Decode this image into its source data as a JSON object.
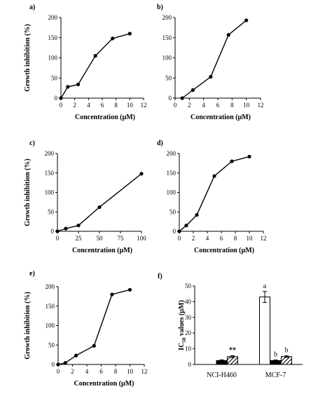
{
  "chart_data": [
    {
      "id": "a",
      "panel_label": "a)",
      "type": "line",
      "xlabel": "Concentration (µM)",
      "ylabel": "Growth inhibition (%)",
      "xlim": [
        0,
        12
      ],
      "ylim": [
        0,
        200
      ],
      "xticks": [
        0,
        2,
        4,
        6,
        8,
        10,
        12
      ],
      "yticks": [
        0,
        50,
        100,
        150,
        200
      ],
      "x": [
        0,
        1,
        2.5,
        5,
        7.5,
        10
      ],
      "y": [
        0,
        28,
        34,
        105,
        148,
        160
      ]
    },
    {
      "id": "b",
      "panel_label": "b)",
      "type": "line",
      "xlabel": "Concentration (µM)",
      "ylabel": "",
      "xlim": [
        0,
        12
      ],
      "ylim": [
        0,
        200
      ],
      "xticks": [
        0,
        2,
        4,
        6,
        8,
        10,
        12
      ],
      "yticks": [
        0,
        50,
        100,
        150,
        200
      ],
      "x": [
        1,
        2.5,
        5,
        7.5,
        10
      ],
      "y": [
        0,
        20,
        53,
        157,
        193
      ]
    },
    {
      "id": "c",
      "panel_label": "c)",
      "type": "line",
      "xlabel": "Concentration (µM)",
      "ylabel": "Growth inhibition (%)",
      "xlim": [
        0,
        100
      ],
      "ylim": [
        0,
        200
      ],
      "xticks": [
        0,
        25,
        50,
        75,
        100
      ],
      "yticks": [
        0,
        50,
        100,
        150,
        200
      ],
      "x": [
        0,
        10,
        25,
        50,
        100
      ],
      "y": [
        0,
        7,
        15,
        62,
        148
      ]
    },
    {
      "id": "d",
      "panel_label": "d)",
      "type": "line",
      "xlabel": "Concentration (µM)",
      "ylabel": "",
      "xlim": [
        0,
        12
      ],
      "ylim": [
        0,
        200
      ],
      "xticks": [
        0,
        2,
        4,
        6,
        8,
        10,
        12
      ],
      "yticks": [
        0,
        50,
        100,
        150,
        200
      ],
      "x": [
        0,
        1,
        2.5,
        5,
        7.5,
        10
      ],
      "y": [
        0,
        15,
        42,
        142,
        180,
        192
      ]
    },
    {
      "id": "e",
      "panel_label": "e)",
      "type": "line",
      "xlabel": "Concentration (µM)",
      "ylabel": "Growth inhibition (%)",
      "xlim": [
        0,
        12
      ],
      "ylim": [
        0,
        200
      ],
      "xticks": [
        0,
        2,
        4,
        6,
        8,
        10,
        12
      ],
      "yticks": [
        0,
        50,
        100,
        150,
        200
      ],
      "x": [
        0,
        1,
        2.5,
        5,
        7.5,
        10
      ],
      "y": [
        0,
        4,
        23,
        48,
        180,
        192
      ]
    },
    {
      "id": "f",
      "panel_label": "f)",
      "type": "bar",
      "ylabel_main": "IC",
      "ylabel_sub": "50",
      "ylabel_rest": " values (µM)",
      "ylim": [
        0,
        50
      ],
      "yticks": [
        0,
        10,
        20,
        30,
        40,
        50
      ],
      "categories": [
        "NCI-H460",
        "MCF-7"
      ],
      "series": [
        {
          "fill": "white",
          "values": [
            0,
            43
          ],
          "errors": [
            0,
            3.5
          ]
        },
        {
          "fill": "black",
          "values": [
            2.5,
            2.5
          ],
          "errors": [
            0.5,
            0.4
          ]
        },
        {
          "fill": "hatch",
          "values": [
            5,
            5
          ],
          "errors": [
            0.6,
            0.5
          ]
        }
      ],
      "annotations": [
        {
          "text": "**",
          "category": 0,
          "series": 2
        },
        {
          "text": "a",
          "category": 1,
          "series": 0
        },
        {
          "text": "b",
          "category": 1,
          "series": 1
        },
        {
          "text": "b",
          "category": 1,
          "series": 2
        }
      ]
    }
  ]
}
